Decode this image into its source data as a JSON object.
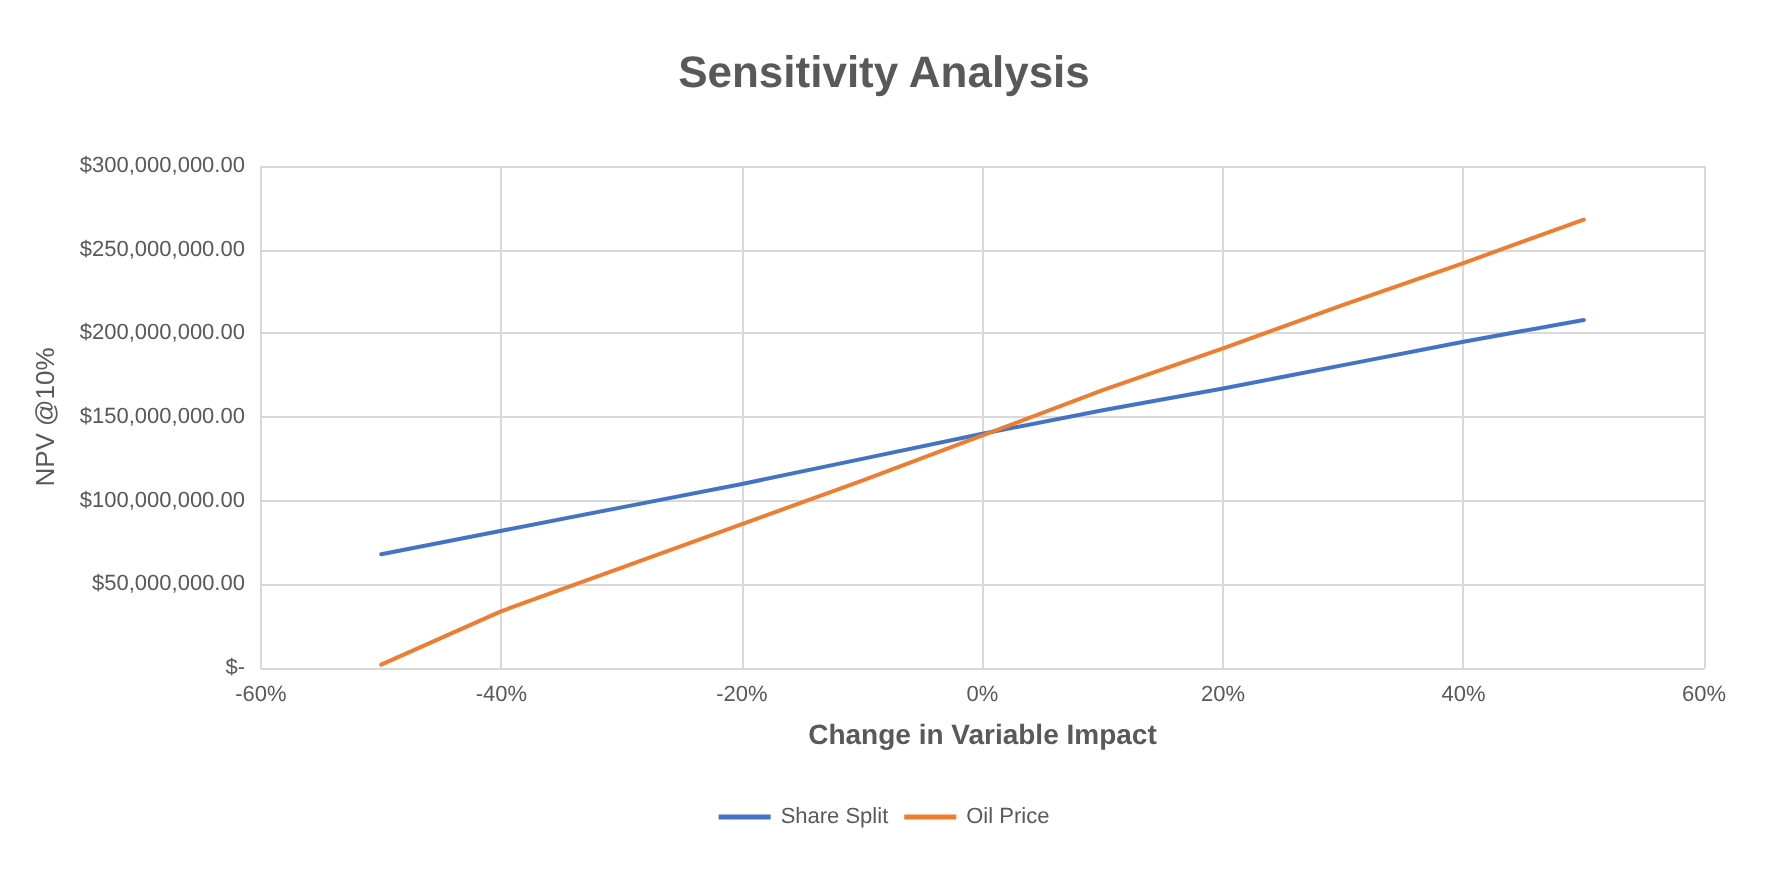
{
  "chart_data": {
    "type": "line",
    "title": "Sensitivity Analysis",
    "xlabel": "Change in Variable Impact",
    "ylabel": "NPV @10%",
    "x": [
      -50,
      -40,
      -30,
      -20,
      -10,
      0,
      10,
      20,
      30,
      40,
      50
    ],
    "series": [
      {
        "name": "Share Split",
        "color": "#4472c4",
        "values": [
          68000000,
          82000000,
          96000000,
          110000000,
          125000000,
          140000000,
          154000000,
          167000000,
          181000000,
          195000000,
          208000000
        ]
      },
      {
        "name": "Oil Price",
        "color": "#ed7d31",
        "values": [
          2000000,
          34000000,
          60000000,
          86000000,
          112000000,
          139000000,
          166000000,
          191000000,
          217000000,
          242000000,
          268000000
        ]
      }
    ],
    "xlim": [
      -60,
      60
    ],
    "xticks": [
      {
        "value": -60,
        "label": "-60%"
      },
      {
        "value": -40,
        "label": "-40%"
      },
      {
        "value": -20,
        "label": "-20%"
      },
      {
        "value": 0,
        "label": "0%"
      },
      {
        "value": 20,
        "label": "20%"
      },
      {
        "value": 40,
        "label": "40%"
      },
      {
        "value": 60,
        "label": "60%"
      }
    ],
    "ylim": [
      0,
      300000000
    ],
    "yticks": [
      {
        "value": 0,
        "label": "$-"
      },
      {
        "value": 50000000,
        "label": "$50,000,000.00"
      },
      {
        "value": 100000000,
        "label": "$100,000,000.00"
      },
      {
        "value": 150000000,
        "label": "$150,000,000.00"
      },
      {
        "value": 200000000,
        "label": "$200,000,000.00"
      },
      {
        "value": 250000000,
        "label": "$250,000,000.00"
      },
      {
        "value": 300000000,
        "label": "$300,000,000.00"
      }
    ],
    "grid": true,
    "legend": "bottom",
    "marker": "none",
    "line_style": "solid"
  }
}
